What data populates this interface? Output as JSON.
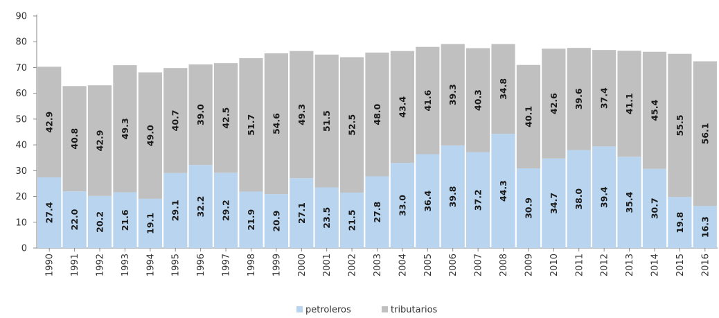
{
  "chart_data": {
    "type": "bar",
    "stacked": true,
    "categories": [
      "1990",
      "1991",
      "1992",
      "1993",
      "1994",
      "1995",
      "1996",
      "1997",
      "1998",
      "1999",
      "2000",
      "2001",
      "2002",
      "2003",
      "2004",
      "2005",
      "2006",
      "2007",
      "2008",
      "2009",
      "2010",
      "2011",
      "2012",
      "2013",
      "2014",
      "2015",
      "2016"
    ],
    "series": [
      {
        "name": "petroleros",
        "color": "#b9d4ee",
        "values": [
          27.4,
          22.0,
          20.2,
          21.6,
          19.1,
          29.1,
          32.2,
          29.2,
          21.9,
          20.9,
          27.1,
          23.5,
          21.5,
          27.8,
          33.0,
          36.4,
          39.8,
          37.2,
          44.3,
          30.9,
          34.7,
          38.0,
          39.4,
          35.4,
          30.7,
          19.8,
          16.3
        ]
      },
      {
        "name": "tributarios",
        "color": "#c0c0c0",
        "values": [
          42.9,
          40.8,
          42.9,
          49.3,
          49.0,
          40.7,
          39.0,
          42.5,
          51.7,
          54.6,
          49.3,
          51.5,
          52.5,
          48.0,
          43.4,
          41.6,
          39.3,
          40.3,
          34.8,
          40.1,
          42.6,
          39.6,
          37.4,
          41.1,
          45.4,
          55.5,
          56.1
        ]
      }
    ],
    "labels": {
      "petroleros": [
        "27.4",
        "22.0",
        "20.2",
        "21.6",
        "19.1",
        "29.1",
        "32.2",
        "29.2",
        "21.9",
        "20.9",
        "27.1",
        "23.5",
        "21.5",
        "27.8",
        "33.0",
        "36.4",
        "39.8",
        "37.2",
        "44.3",
        "30.9",
        "34.7",
        "38.0",
        "39.4",
        "35.4",
        "30.7",
        "19.8",
        "16.3"
      ],
      "tributarios": [
        "42.9",
        "40.8",
        "42.9",
        "49.3",
        "49.0",
        "40.7",
        "39.0",
        "42.5",
        "51.7",
        "54.6",
        "49.3",
        "51.5",
        "52.5",
        "48.0",
        "43.4",
        "41.6",
        "39.3",
        "40.3",
        "34.8",
        "40.1",
        "42.6",
        "39.6",
        "37.4",
        "41.1",
        "45.4",
        "55.5",
        "56.1"
      ]
    },
    "yticks": [
      "0",
      "10",
      "20",
      "30",
      "40",
      "50",
      "60",
      "70",
      "80",
      "90"
    ],
    "ylim": [
      0,
      90
    ],
    "grid": false,
    "legend_position": "bottom-center",
    "title": "",
    "xlabel": "",
    "ylabel": ""
  }
}
